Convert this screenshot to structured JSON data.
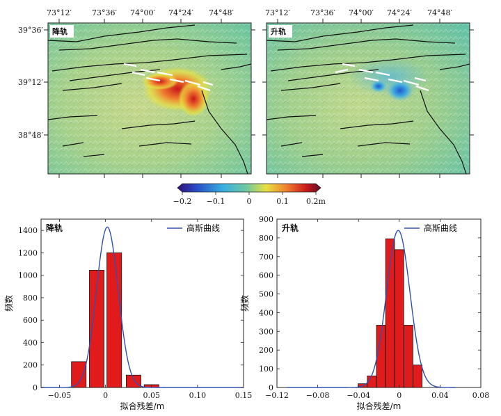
{
  "maps": {
    "lon_ticks": [
      "73°12′",
      "73°36′",
      "74°00′",
      "74°24′",
      "74°48′"
    ],
    "lat_ticks": [
      "39°36′",
      "39°12′",
      "38°48′"
    ],
    "panels": [
      {
        "name": "降轨",
        "anomaly": "red"
      },
      {
        "name": "升轨",
        "anomaly": "blue"
      }
    ]
  },
  "colorbar": {
    "ticks": [
      "-0.2",
      "-0.1",
      "0",
      "0.1",
      "0.2m"
    ],
    "colors": [
      "#30107a",
      "#2850c8",
      "#36b0e0",
      "#6ec8a0",
      "#e8e040",
      "#f08030",
      "#c81818",
      "#60102a"
    ]
  },
  "chart_data": [
    {
      "type": "bar",
      "panel_label": "降轨",
      "legend": "高斯曲线",
      "xlabel": "拟合残差/m",
      "ylabel": "频数",
      "xlim": [
        -0.07,
        0.15
      ],
      "ylim": [
        0,
        1500
      ],
      "xticks": [
        -0.05,
        0.0,
        0.05,
        0.1,
        0.15
      ],
      "xtick_labels": [
        "-0.05",
        "0",
        "0.05",
        "0.10",
        "0.15"
      ],
      "yticks": [
        0,
        200,
        400,
        600,
        800,
        1000,
        1200,
        1400
      ],
      "bin_width": 0.016,
      "bins": [
        {
          "x": -0.029,
          "value": 230
        },
        {
          "x": -0.0095,
          "value": 1045
        },
        {
          "x": 0.0095,
          "value": 1200
        },
        {
          "x": 0.0305,
          "value": 110
        },
        {
          "x": 0.05,
          "value": 25
        }
      ],
      "gauss": {
        "amplitude": 1430,
        "mean": 0.002,
        "sigma": 0.0118,
        "range": [
          -0.07,
          0.15
        ]
      },
      "colors": {
        "bar": "#e11b1b",
        "curve": "#3050b0"
      }
    },
    {
      "type": "bar",
      "panel_label": "升轨",
      "legend": "高斯曲线",
      "xlabel": "拟合残差/m",
      "ylabel": "频数",
      "xlim": [
        -0.12,
        0.08
      ],
      "ylim": [
        0,
        900
      ],
      "xticks": [
        -0.12,
        -0.08,
        -0.04,
        0.0,
        0.04,
        0.08
      ],
      "xtick_labels": [
        "-0.12",
        "-0.08",
        "-0.04",
        "0",
        "0.04",
        "0.08"
      ],
      "yticks": [
        0,
        100,
        200,
        300,
        400,
        500,
        600,
        700,
        800,
        900
      ],
      "bin_width": 0.0088,
      "bins": [
        {
          "x": -0.036,
          "value": 20
        },
        {
          "x": -0.027,
          "value": 62
        },
        {
          "x": -0.018,
          "value": 333
        },
        {
          "x": -0.009,
          "value": 795
        },
        {
          "x": 0.0,
          "value": 737
        },
        {
          "x": 0.009,
          "value": 333
        },
        {
          "x": 0.018,
          "value": 120
        }
      ],
      "gauss": {
        "amplitude": 840,
        "mean": -0.001,
        "sigma": 0.0115,
        "range": [
          -0.11,
          0.055
        ]
      },
      "colors": {
        "bar": "#e11b1b",
        "curve": "#3050b0"
      }
    }
  ]
}
